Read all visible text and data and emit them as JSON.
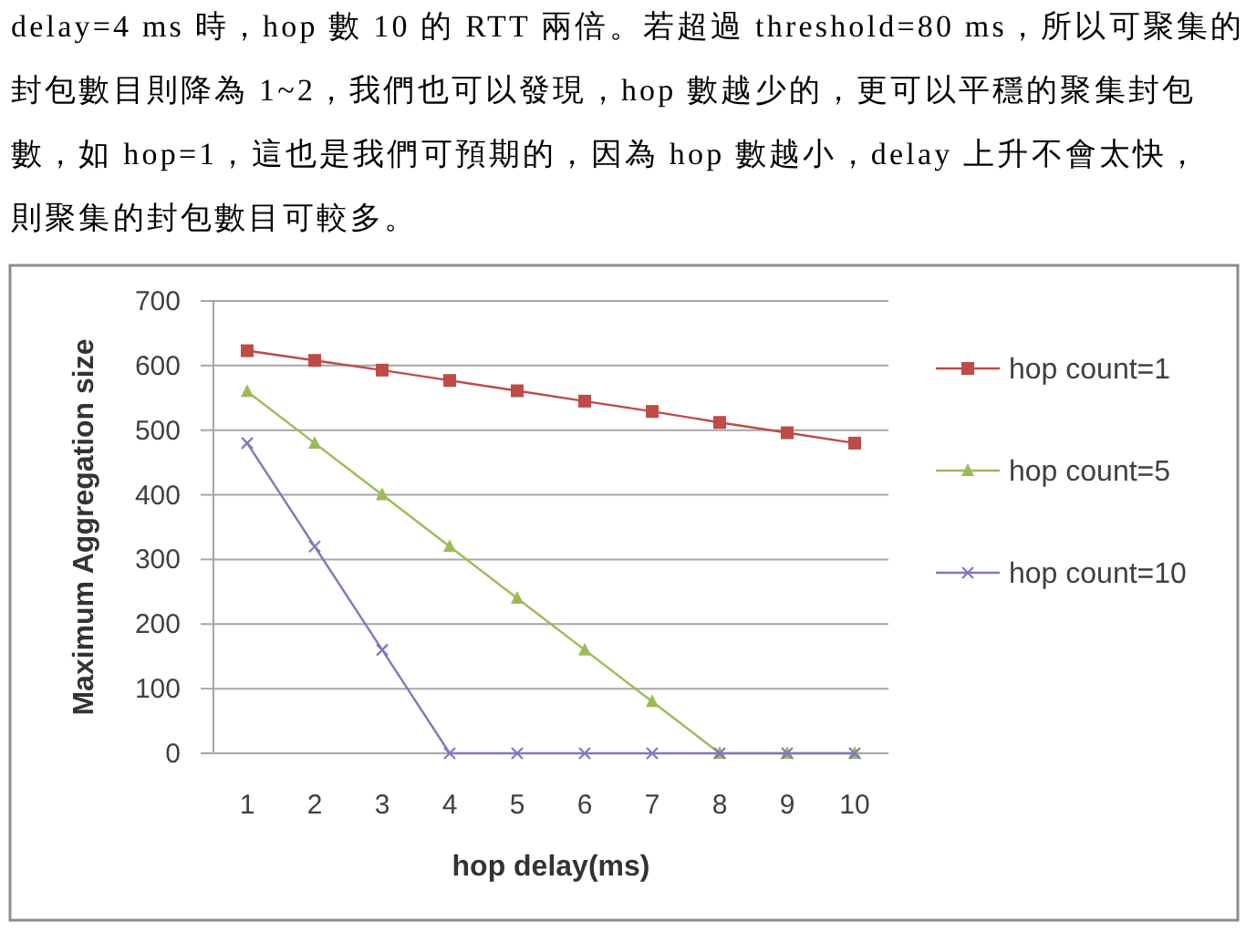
{
  "chart_data": {
    "type": "line",
    "annotations": [
      "delay=4 ms 時，hop 數 10 的 RTT 兩倍。若超過 threshold=80 ms，所以可聚集的",
      "封包數目則降為 1~2，我們也可以發現，hop 數越少的，更可以平穩的聚集封包",
      "數，如 hop=1，這也是我們可預期的，因為 hop 數越小，delay 上升不會太快，",
      "則聚集的封包數目可較多。"
    ],
    "categories": [
      "1",
      "2",
      "3",
      "4",
      "5",
      "6",
      "7",
      "8",
      "9",
      "10"
    ],
    "xlabel": "hop delay(ms)",
    "ylabel": "Maximum Aggregation size",
    "ylim": [
      0,
      700
    ],
    "yticks": [
      0,
      100,
      200,
      300,
      400,
      500,
      600,
      700
    ],
    "grid": "y",
    "legend": "right",
    "series": [
      {
        "name": "hop count=1",
        "color": "#be4b48",
        "marker": "square",
        "values": [
          623,
          608,
          593,
          577,
          561,
          545,
          529,
          512,
          496,
          480
        ]
      },
      {
        "name": "hop count=5",
        "color": "#9bbb59",
        "marker": "triangle",
        "values": [
          560,
          480,
          400,
          320,
          240,
          160,
          80,
          0,
          0,
          0
        ]
      },
      {
        "name": "hop count=10",
        "color": "#7f78bd",
        "marker": "cross",
        "values": [
          480,
          320,
          160,
          0,
          0,
          0,
          0,
          0,
          0,
          0
        ]
      }
    ]
  }
}
